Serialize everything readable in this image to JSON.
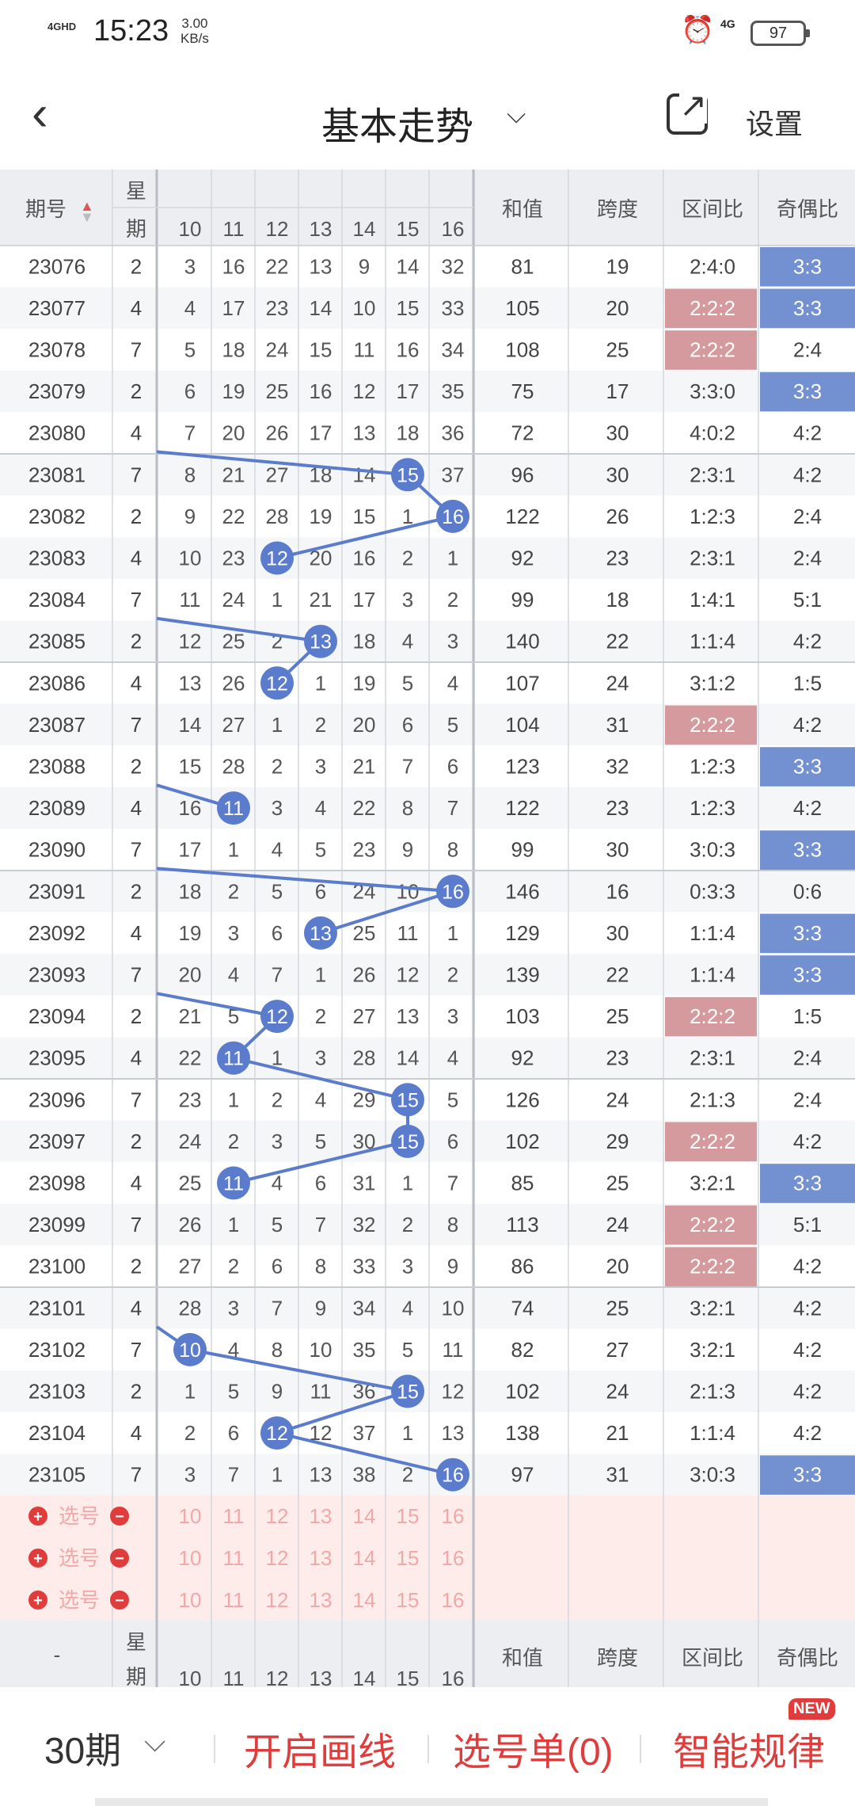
{
  "status_bar": {
    "signal": "4GHD",
    "time": "15:23",
    "speed_value": "3.00",
    "speed_unit": "KB/s",
    "network": "4G",
    "battery": "97"
  },
  "header": {
    "back_icon": "chevron-left-icon",
    "title": "基本走势",
    "title_chevron": "chevron-down-icon",
    "share_icon": "share-icon",
    "settings_label": "设置"
  },
  "table": {
    "headers": {
      "period": "期号",
      "weekday_top": "星",
      "weekday_bottom": "期",
      "sum": "和值",
      "span": "跨度",
      "range_ratio": "区间比",
      "odd_even_ratio": "奇偶比"
    },
    "ball_columns": [
      "10",
      "11",
      "12",
      "13",
      "14",
      "15",
      "16"
    ],
    "rows": [
      {
        "period": "23076",
        "weekday": "2",
        "cells": [
          "3",
          "16",
          "22",
          "13",
          "9",
          "14",
          "32"
        ],
        "ball": null,
        "sum": "81",
        "span": "19",
        "range": "2:4:0",
        "range_hl": false,
        "oe": "3:3",
        "oe_hl": true
      },
      {
        "period": "23077",
        "weekday": "4",
        "cells": [
          "4",
          "17",
          "23",
          "14",
          "10",
          "15",
          "33"
        ],
        "ball": null,
        "sum": "105",
        "span": "20",
        "range": "2:2:2",
        "range_hl": true,
        "oe": "3:3",
        "oe_hl": true
      },
      {
        "period": "23078",
        "weekday": "7",
        "cells": [
          "5",
          "18",
          "24",
          "15",
          "11",
          "16",
          "34"
        ],
        "ball": null,
        "sum": "108",
        "span": "25",
        "range": "2:2:2",
        "range_hl": true,
        "oe": "2:4",
        "oe_hl": false
      },
      {
        "period": "23079",
        "weekday": "2",
        "cells": [
          "6",
          "19",
          "25",
          "16",
          "12",
          "17",
          "35"
        ],
        "ball": null,
        "sum": "75",
        "span": "17",
        "range": "3:3:0",
        "range_hl": false,
        "oe": "3:3",
        "oe_hl": true
      },
      {
        "period": "23080",
        "weekday": "4",
        "cells": [
          "7",
          "20",
          "26",
          "17",
          "13",
          "18",
          "36"
        ],
        "ball": null,
        "sum": "72",
        "span": "30",
        "range": "4:0:2",
        "range_hl": false,
        "oe": "4:2",
        "oe_hl": false
      },
      {
        "period": "23081",
        "weekday": "7",
        "cells": [
          "8",
          "21",
          "27",
          "18",
          "14",
          "15",
          "37"
        ],
        "ball": 5,
        "sum": "96",
        "span": "30",
        "range": "2:3:1",
        "range_hl": false,
        "oe": "4:2",
        "oe_hl": false
      },
      {
        "period": "23082",
        "weekday": "2",
        "cells": [
          "9",
          "22",
          "28",
          "19",
          "15",
          "1",
          "16"
        ],
        "ball": 6,
        "sum": "122",
        "span": "26",
        "range": "1:2:3",
        "range_hl": false,
        "oe": "2:4",
        "oe_hl": false
      },
      {
        "period": "23083",
        "weekday": "4",
        "cells": [
          "10",
          "23",
          "12",
          "20",
          "16",
          "2",
          "1"
        ],
        "ball": 2,
        "sum": "92",
        "span": "23",
        "range": "2:3:1",
        "range_hl": false,
        "oe": "2:4",
        "oe_hl": false
      },
      {
        "period": "23084",
        "weekday": "7",
        "cells": [
          "11",
          "24",
          "1",
          "21",
          "17",
          "3",
          "2"
        ],
        "ball": null,
        "sum": "99",
        "span": "18",
        "range": "1:4:1",
        "range_hl": false,
        "oe": "5:1",
        "oe_hl": false
      },
      {
        "period": "23085",
        "weekday": "2",
        "cells": [
          "12",
          "25",
          "2",
          "13",
          "18",
          "4",
          "3"
        ],
        "ball": 3,
        "sum": "140",
        "span": "22",
        "range": "1:1:4",
        "range_hl": false,
        "oe": "4:2",
        "oe_hl": false
      },
      {
        "period": "23086",
        "weekday": "4",
        "cells": [
          "13",
          "26",
          "12",
          "1",
          "19",
          "5",
          "4"
        ],
        "ball": 2,
        "sum": "107",
        "span": "24",
        "range": "3:1:2",
        "range_hl": false,
        "oe": "1:5",
        "oe_hl": false
      },
      {
        "period": "23087",
        "weekday": "7",
        "cells": [
          "14",
          "27",
          "1",
          "2",
          "20",
          "6",
          "5"
        ],
        "ball": null,
        "sum": "104",
        "span": "31",
        "range": "2:2:2",
        "range_hl": true,
        "oe": "4:2",
        "oe_hl": false
      },
      {
        "period": "23088",
        "weekday": "2",
        "cells": [
          "15",
          "28",
          "2",
          "3",
          "21",
          "7",
          "6"
        ],
        "ball": null,
        "sum": "123",
        "span": "32",
        "range": "1:2:3",
        "range_hl": false,
        "oe": "3:3",
        "oe_hl": true
      },
      {
        "period": "23089",
        "weekday": "4",
        "cells": [
          "16",
          "11",
          "3",
          "4",
          "22",
          "8",
          "7"
        ],
        "ball": 1,
        "sum": "122",
        "span": "23",
        "range": "1:2:3",
        "range_hl": false,
        "oe": "4:2",
        "oe_hl": false
      },
      {
        "period": "23090",
        "weekday": "7",
        "cells": [
          "17",
          "1",
          "4",
          "5",
          "23",
          "9",
          "8"
        ],
        "ball": null,
        "sum": "99",
        "span": "30",
        "range": "3:0:3",
        "range_hl": false,
        "oe": "3:3",
        "oe_hl": true
      },
      {
        "period": "23091",
        "weekday": "2",
        "cells": [
          "18",
          "2",
          "5",
          "6",
          "24",
          "10",
          "16"
        ],
        "ball": 6,
        "sum": "146",
        "span": "16",
        "range": "0:3:3",
        "range_hl": false,
        "oe": "0:6",
        "oe_hl": false
      },
      {
        "period": "23092",
        "weekday": "4",
        "cells": [
          "19",
          "3",
          "6",
          "13",
          "25",
          "11",
          "1"
        ],
        "ball": 3,
        "sum": "129",
        "span": "30",
        "range": "1:1:4",
        "range_hl": false,
        "oe": "3:3",
        "oe_hl": true
      },
      {
        "period": "23093",
        "weekday": "7",
        "cells": [
          "20",
          "4",
          "7",
          "1",
          "26",
          "12",
          "2"
        ],
        "ball": null,
        "sum": "139",
        "span": "22",
        "range": "1:1:4",
        "range_hl": false,
        "oe": "3:3",
        "oe_hl": true
      },
      {
        "period": "23094",
        "weekday": "2",
        "cells": [
          "21",
          "5",
          "12",
          "2",
          "27",
          "13",
          "3"
        ],
        "ball": 2,
        "sum": "103",
        "span": "25",
        "range": "2:2:2",
        "range_hl": true,
        "oe": "1:5",
        "oe_hl": false
      },
      {
        "period": "23095",
        "weekday": "4",
        "cells": [
          "22",
          "11",
          "1",
          "3",
          "28",
          "14",
          "4"
        ],
        "ball": 1,
        "sum": "92",
        "span": "23",
        "range": "2:3:1",
        "range_hl": false,
        "oe": "2:4",
        "oe_hl": false
      },
      {
        "period": "23096",
        "weekday": "7",
        "cells": [
          "23",
          "1",
          "2",
          "4",
          "29",
          "15",
          "5"
        ],
        "ball": 5,
        "sum": "126",
        "span": "24",
        "range": "2:1:3",
        "range_hl": false,
        "oe": "2:4",
        "oe_hl": false
      },
      {
        "period": "23097",
        "weekday": "2",
        "cells": [
          "24",
          "2",
          "3",
          "5",
          "30",
          "15",
          "6"
        ],
        "ball": 5,
        "sum": "102",
        "span": "29",
        "range": "2:2:2",
        "range_hl": true,
        "oe": "4:2",
        "oe_hl": false
      },
      {
        "period": "23098",
        "weekday": "4",
        "cells": [
          "25",
          "11",
          "4",
          "6",
          "31",
          "1",
          "7"
        ],
        "ball": 1,
        "sum": "85",
        "span": "25",
        "range": "3:2:1",
        "range_hl": false,
        "oe": "3:3",
        "oe_hl": true
      },
      {
        "period": "23099",
        "weekday": "7",
        "cells": [
          "26",
          "1",
          "5",
          "7",
          "32",
          "2",
          "8"
        ],
        "ball": null,
        "sum": "113",
        "span": "24",
        "range": "2:2:2",
        "range_hl": true,
        "oe": "5:1",
        "oe_hl": false
      },
      {
        "period": "23100",
        "weekday": "2",
        "cells": [
          "27",
          "2",
          "6",
          "8",
          "33",
          "3",
          "9"
        ],
        "ball": null,
        "sum": "86",
        "span": "20",
        "range": "2:2:2",
        "range_hl": true,
        "oe": "4:2",
        "oe_hl": false
      },
      {
        "period": "23101",
        "weekday": "4",
        "cells": [
          "28",
          "3",
          "7",
          "9",
          "34",
          "4",
          "10"
        ],
        "ball": null,
        "sum": "74",
        "span": "25",
        "range": "3:2:1",
        "range_hl": false,
        "oe": "4:2",
        "oe_hl": false
      },
      {
        "period": "23102",
        "weekday": "7",
        "cells": [
          "10",
          "4",
          "8",
          "10",
          "35",
          "5",
          "11"
        ],
        "ball": 0,
        "sum": "82",
        "span": "27",
        "range": "3:2:1",
        "range_hl": false,
        "oe": "4:2",
        "oe_hl": false
      },
      {
        "period": "23103",
        "weekday": "2",
        "cells": [
          "1",
          "5",
          "9",
          "11",
          "36",
          "15",
          "12"
        ],
        "ball": 5,
        "sum": "102",
        "span": "24",
        "range": "2:1:3",
        "range_hl": false,
        "oe": "4:2",
        "oe_hl": false
      },
      {
        "period": "23104",
        "weekday": "4",
        "cells": [
          "2",
          "6",
          "12",
          "12",
          "37",
          "1",
          "13"
        ],
        "ball": 2,
        "sum": "138",
        "span": "21",
        "range": "1:1:4",
        "range_hl": false,
        "oe": "4:2",
        "oe_hl": false
      },
      {
        "period": "23105",
        "weekday": "7",
        "cells": [
          "3",
          "7",
          "1",
          "13",
          "38",
          "2",
          "16"
        ],
        "ball": 6,
        "sum": "97",
        "span": "31",
        "range": "3:0:3",
        "range_hl": false,
        "oe": "3:3",
        "oe_hl": true
      }
    ],
    "select_rows": [
      {
        "label": "选号"
      },
      {
        "label": "选号"
      },
      {
        "label": "选号"
      }
    ],
    "footer_period": "-",
    "colors": {
      "ball": "#5b7ccc",
      "odd_even_highlight": "#7390d0",
      "range_highlight": "#d49a9e",
      "select_band": "#fdecea",
      "select_text": "#f0a8a8",
      "accent_red": "#e03c3c"
    }
  },
  "bottom_bar": {
    "period_selector": "30期",
    "draw_lines": "开启画线",
    "pick_list": "选号单(0)",
    "smart_rules": "智能规律",
    "new_badge": "NEW"
  }
}
